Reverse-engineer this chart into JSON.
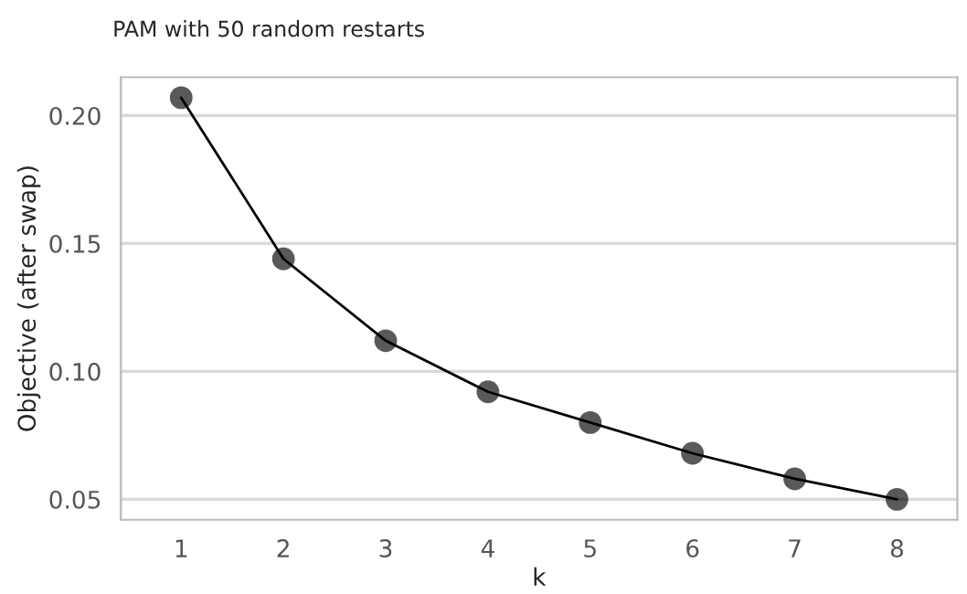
{
  "chart_data": {
    "type": "line",
    "title": "PAM with 50 random restarts",
    "xlabel": "k",
    "ylabel": "Objective (after swap)",
    "x": [
      1,
      2,
      3,
      4,
      5,
      6,
      7,
      8
    ],
    "series": [
      {
        "color": "#000000",
        "values": [
          0.207,
          0.144,
          0.112,
          0.092,
          0.08,
          0.068,
          0.058,
          0.05
        ]
      }
    ],
    "xlim": [
      0.41,
      8.59
    ],
    "ylim": [
      0.042,
      0.215
    ],
    "xticks": [
      1,
      2,
      3,
      4,
      5,
      6,
      7,
      8
    ],
    "yticks": [
      {
        "value": 0.05,
        "label": "0.05"
      },
      {
        "value": 0.1,
        "label": "0.10"
      },
      {
        "value": 0.15,
        "label": "0.15"
      },
      {
        "value": 0.2,
        "label": "0.20"
      }
    ],
    "grid": "y",
    "marker": "circle",
    "line_style": "solid"
  }
}
